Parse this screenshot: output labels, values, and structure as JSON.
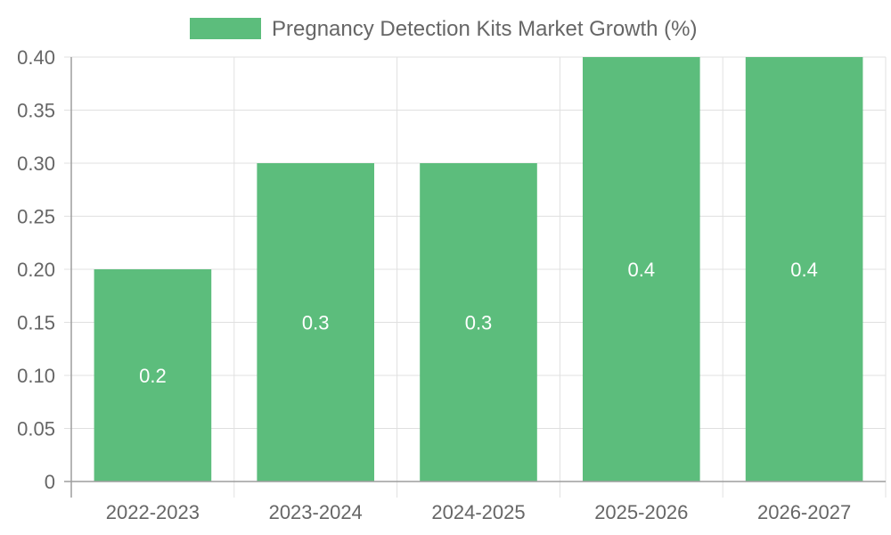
{
  "chart_data": {
    "type": "bar",
    "categories": [
      "2022-2023",
      "2023-2024",
      "2024-2025",
      "2025-2026",
      "2026-2027"
    ],
    "series": [
      {
        "name": "Pregnancy Detection Kits Market Growth (%)",
        "values": [
          0.2,
          0.3,
          0.3,
          0.4,
          0.4
        ],
        "data_labels": [
          "0.2",
          "0.3",
          "0.3",
          "0.4",
          "0.4"
        ]
      }
    ],
    "ylim": [
      0,
      0.4
    ],
    "y_ticks": [
      0,
      0.05,
      0.1,
      0.15,
      0.2,
      0.25,
      0.3,
      0.35,
      0.4
    ],
    "y_tick_labels": [
      "0",
      "0.05",
      "0.10",
      "0.15",
      "0.20",
      "0.25",
      "0.30",
      "0.35",
      "0.40"
    ],
    "grid": true,
    "legend_position": "top",
    "colors": {
      "bar": "#5cbd7c",
      "grid": "#e0e0e0",
      "axis": "#9e9e9e",
      "text": "#666666",
      "data_label": "#ffffff"
    }
  }
}
